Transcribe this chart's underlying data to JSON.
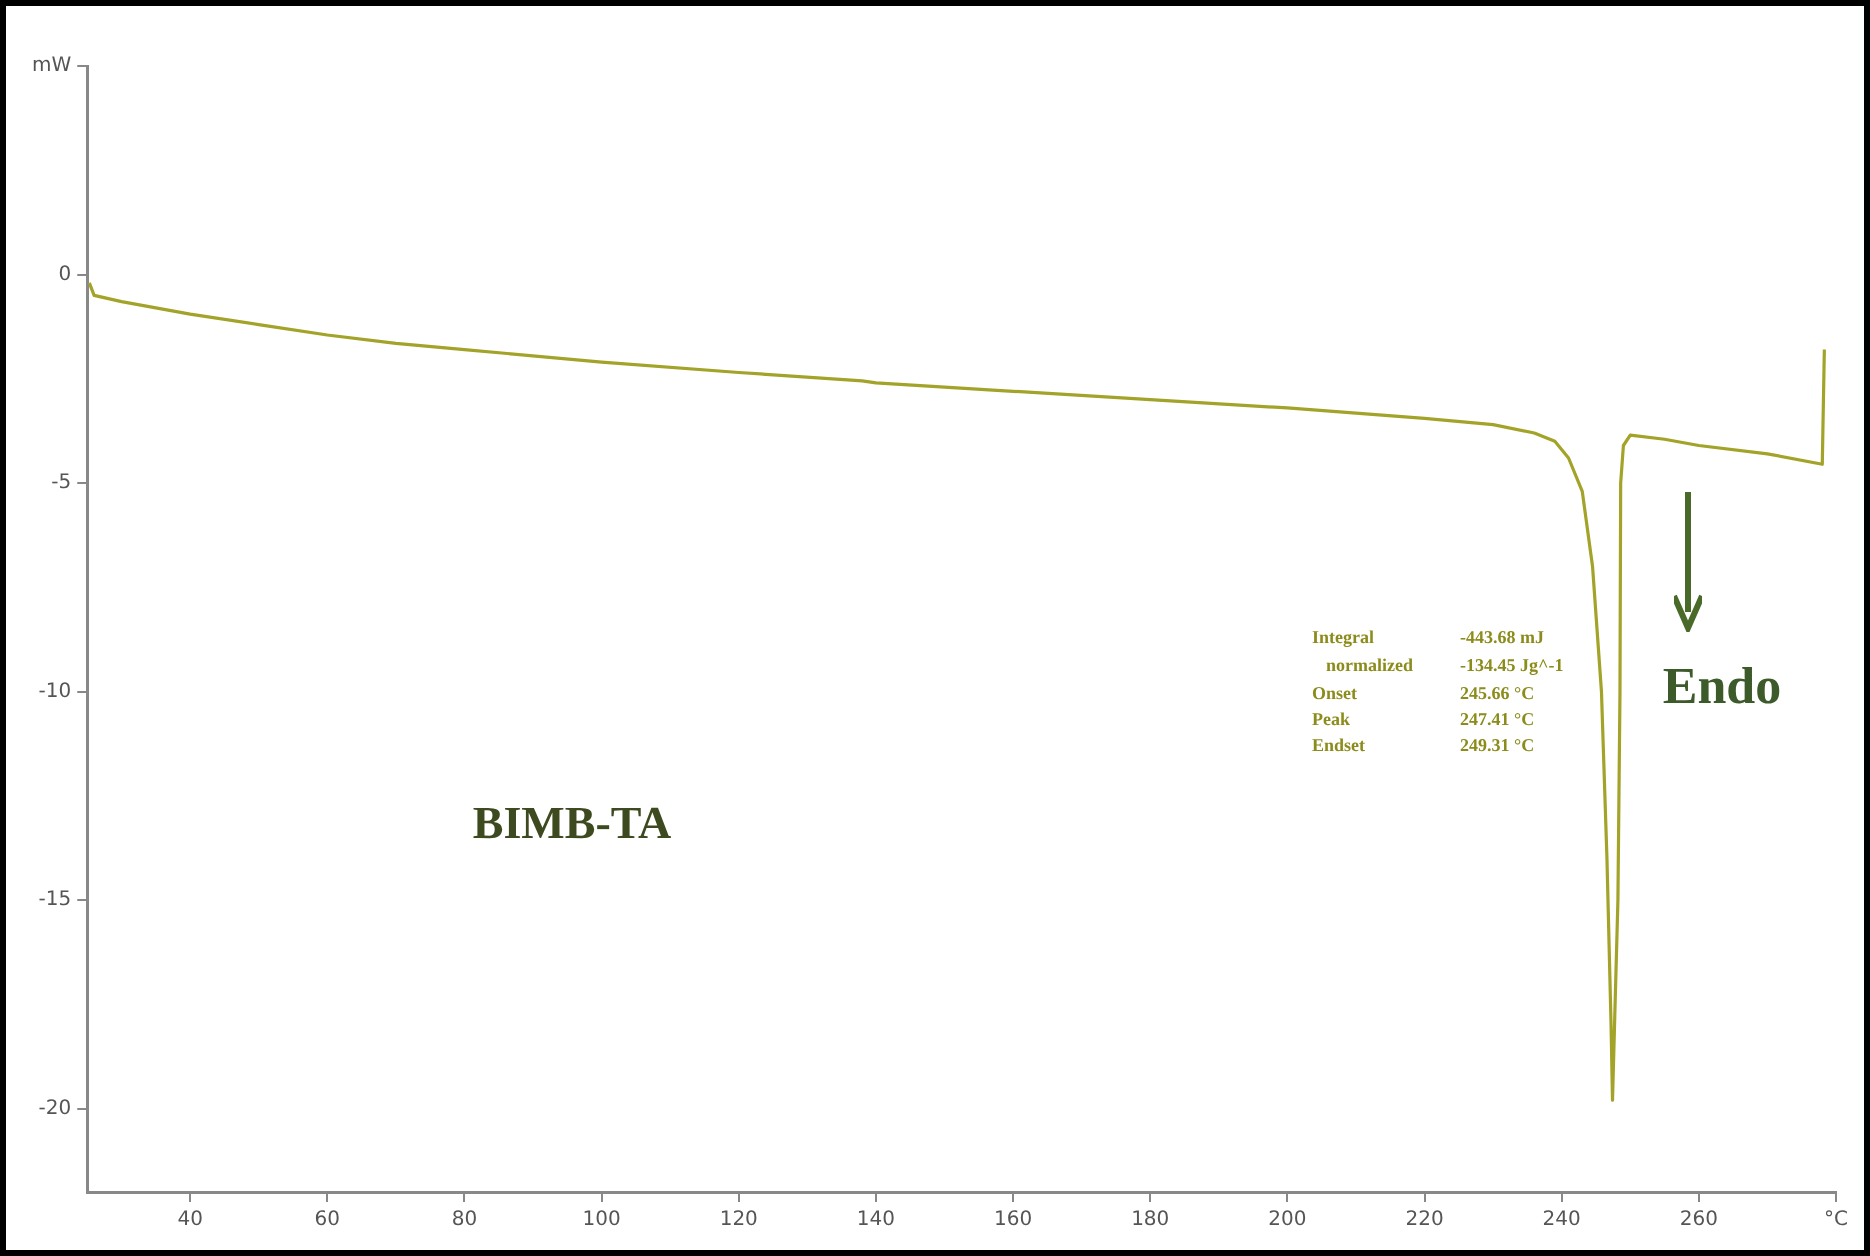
{
  "chart_data": {
    "type": "line",
    "x": [
      25.3,
      26,
      30,
      40,
      50,
      60,
      70,
      80,
      100,
      120,
      138,
      140,
      160,
      180,
      200,
      220,
      230,
      236,
      239,
      241,
      243,
      244.5,
      245.8,
      246.6,
      247.2,
      247.41,
      248.2,
      248.5,
      248.6,
      249,
      250,
      255,
      260,
      270,
      278,
      278.3
    ],
    "series": [
      {
        "color": "#a3a329",
        "values": [
          -0.2,
          -0.5,
          -0.65,
          -0.95,
          -1.2,
          -1.45,
          -1.65,
          -1.8,
          -2.1,
          -2.35,
          -2.55,
          -2.6,
          -2.8,
          -3.0,
          -3.2,
          -3.45,
          -3.6,
          -3.8,
          -4.0,
          -4.4,
          -5.2,
          -7,
          -10,
          -14,
          -18,
          -19.8,
          -15,
          -10,
          -5,
          -4.1,
          -3.85,
          -3.95,
          -4.1,
          -4.3,
          -4.55,
          -1.8
        ]
      }
    ],
    "xlim": [
      25,
      280
    ],
    "xticks": [
      40,
      60,
      80,
      100,
      120,
      140,
      160,
      180,
      200,
      220,
      240,
      260,
      {
        "value": 280,
        "label": "°C"
      }
    ],
    "ylim": [
      -22,
      5
    ],
    "yticks": [
      -20,
      -15,
      -10,
      -5,
      0,
      {
        "value": 5,
        "label": "mW"
      }
    ],
    "grid": false,
    "legend": false,
    "marker": "none",
    "line_style": "solid",
    "annotations": [
      "BIMB-TA",
      "Endo",
      "Integral",
      "-443.68 mJ",
      "normalized",
      "-134.45 Jg^-1",
      "Onset",
      "245.66 °C",
      "Peak",
      "247.41 °C",
      "Endset",
      "249.31 °C"
    ]
  }
}
